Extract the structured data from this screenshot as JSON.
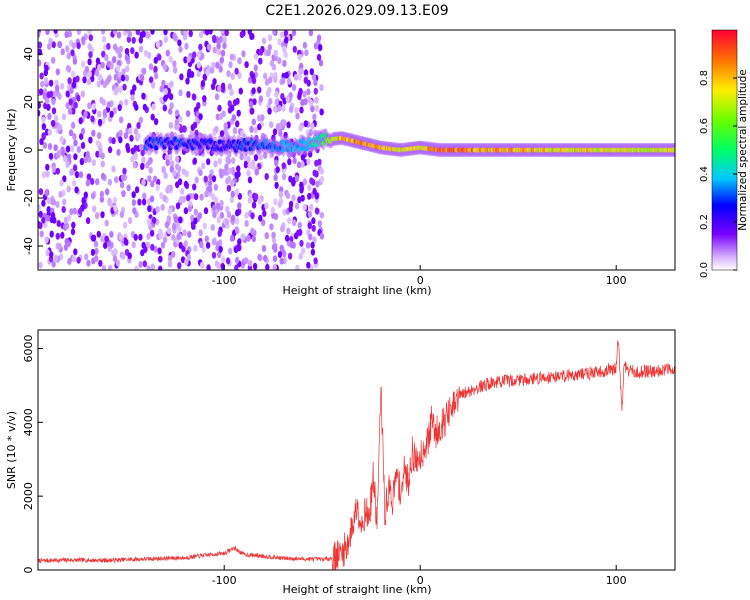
{
  "figure_title": "C2E1.2026.029.09.13.E09",
  "chart_data": [
    {
      "type": "heatmap",
      "xlabel": "Height of straight line (km)",
      "ylabel": "Frequency (Hz)",
      "xlim": [
        -195,
        130
      ],
      "ylim": [
        -50,
        50
      ],
      "xticks": [
        -100,
        0,
        100
      ],
      "yticks": [
        -40,
        -20,
        0,
        20,
        40
      ],
      "colorbar": {
        "label": "Normalized spectral amplitude",
        "range": [
          0,
          1
        ],
        "ticks": [
          0.0,
          0.2,
          0.4,
          0.6,
          0.8
        ],
        "colormap": "rainbow"
      },
      "features": [
        {
          "name": "noise",
          "x_range": [
            -195,
            -50
          ],
          "y_range": [
            -50,
            50
          ],
          "amplitude": 0.12
        },
        {
          "name": "central line",
          "x": [
            -140,
            -100,
            -60,
            -50,
            -40,
            -30,
            -20,
            -10,
            0,
            10,
            50,
            100,
            130
          ],
          "y": [
            3,
            2,
            2,
            4,
            5,
            3,
            1,
            0,
            1,
            0,
            0,
            0,
            0
          ],
          "amplitude": [
            0.3,
            0.25,
            0.4,
            0.5,
            0.8,
            0.85,
            0.8,
            0.75,
            0.7,
            0.9,
            0.8,
            0.75,
            0.7
          ]
        }
      ]
    },
    {
      "type": "line",
      "xlabel": "Height of straight line (km)",
      "ylabel": "SNR (10 * v/v)",
      "xlim": [
        -195,
        130
      ],
      "ylim": [
        0,
        6500
      ],
      "xticks": [
        -100,
        0,
        100
      ],
      "yticks": [
        0,
        2000,
        4000,
        6000
      ],
      "color": "#ee3333",
      "series": [
        {
          "x": [
            -195,
            -180,
            -160,
            -140,
            -120,
            -110,
            -100,
            -95,
            -90,
            -80,
            -70,
            -60,
            -50,
            -45,
            -40,
            -37,
            -35,
            -32,
            -30,
            -28,
            -26,
            -24,
            -22,
            -20,
            -18,
            -16,
            -14,
            -12,
            -10,
            -8,
            -6,
            -4,
            -2,
            0,
            2,
            4,
            6,
            8,
            10,
            12,
            14,
            16,
            18,
            20,
            25,
            30,
            35,
            40,
            50,
            60,
            70,
            80,
            90,
            95,
            100,
            101,
            102,
            103,
            104,
            106,
            110,
            120,
            130
          ],
          "y": [
            250,
            270,
            260,
            300,
            330,
            400,
            450,
            600,
            420,
            380,
            320,
            300,
            290,
            320,
            450,
            700,
            1100,
            1800,
            1200,
            1600,
            1400,
            2500,
            1300,
            4900,
            1500,
            2200,
            1900,
            2600,
            2100,
            2700,
            2400,
            3200,
            2900,
            3100,
            3300,
            3500,
            4100,
            3700,
            3900,
            4000,
            4200,
            4300,
            4500,
            4700,
            4850,
            4950,
            5050,
            5100,
            5150,
            5200,
            5250,
            5300,
            5350,
            5400,
            5450,
            6400,
            5200,
            4300,
            5600,
            5400,
            5350,
            5400,
            5450
          ]
        }
      ]
    }
  ]
}
